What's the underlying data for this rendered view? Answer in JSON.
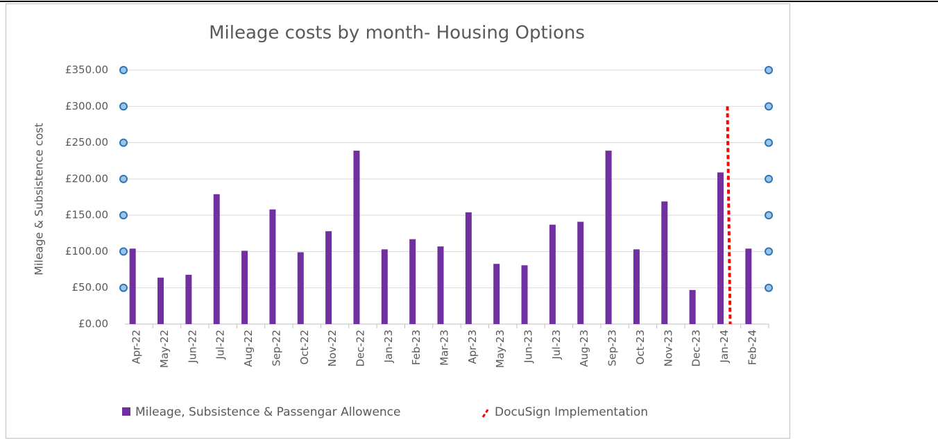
{
  "chart_data": {
    "type": "bar",
    "title": "Mileage costs by month- Housing Options",
    "y_label": "Mileage & Subsistence cost",
    "categories": [
      "Apr-22",
      "May-22",
      "Jun-22",
      "Jul-22",
      "Aug-22",
      "Sep-22",
      "Oct-22",
      "Nov-22",
      "Dec-22",
      "Jan-23",
      "Feb-23",
      "Mar-23",
      "Apr-23",
      "May-23",
      "Jun-23",
      "Jul-23",
      "Aug-23",
      "Sep-23",
      "Oct-23",
      "Nov-23",
      "Dec-23",
      "Jan-24",
      "Feb-24"
    ],
    "series": [
      {
        "name": "Mileage, Subsistence & Passengar Allowence",
        "color": "#7030a0",
        "kind": "bar",
        "values": [
          104,
          64,
          68,
          179,
          101,
          158,
          99,
          128,
          239,
          103,
          117,
          107,
          154,
          83,
          81,
          137,
          141,
          239,
          103,
          169,
          47,
          209,
          104
        ]
      },
      {
        "name": "DocuSign Implementation",
        "color": "#ff0000",
        "kind": "marker-line",
        "values": [
          null,
          null,
          null,
          null,
          null,
          null,
          null,
          null,
          null,
          null,
          null,
          null,
          null,
          null,
          null,
          null,
          null,
          null,
          null,
          null,
          null,
          300,
          null
        ]
      }
    ],
    "ylim": [
      0,
      350
    ],
    "yticks": [
      {
        "value": 0,
        "label": "£0.00"
      },
      {
        "value": 50,
        "label": "£50.00"
      },
      {
        "value": 100,
        "label": "£100.00"
      },
      {
        "value": 150,
        "label": "£150.00"
      },
      {
        "value": 200,
        "label": "£200.00"
      },
      {
        "value": 250,
        "label": "£250.00"
      },
      {
        "value": 300,
        "label": "£300.00"
      },
      {
        "value": 350,
        "label": "£350.00"
      }
    ],
    "grid": true,
    "legend": "bottom"
  }
}
